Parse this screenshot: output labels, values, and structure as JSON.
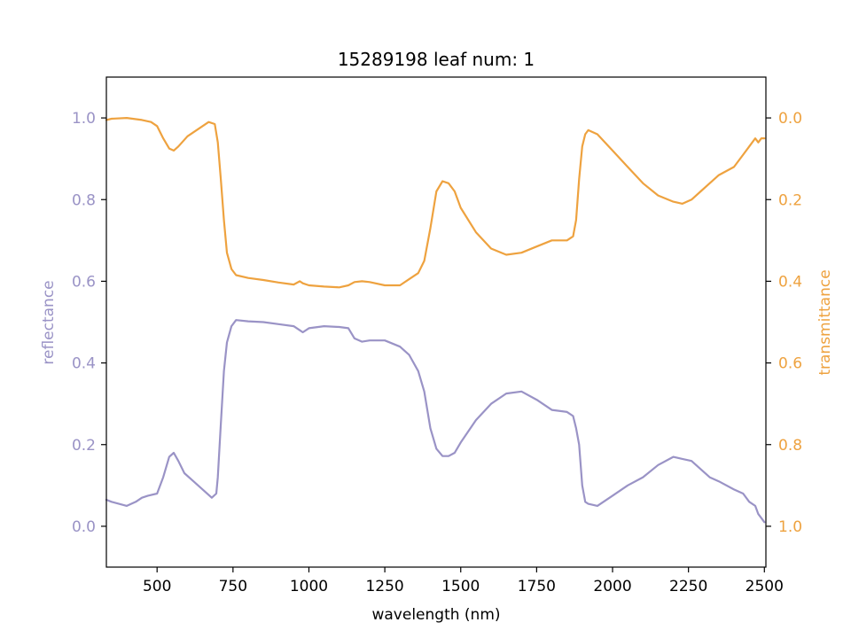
{
  "chart_data": {
    "type": "line",
    "title": "15289198 leaf num: 1",
    "xlabel": "wavelength (nm)",
    "ylabel_left": "reflectance",
    "ylabel_right": "transmittance",
    "xlim": [
      333,
      2505
    ],
    "ylim_left": [
      -0.1,
      1.1
    ],
    "ylim_right": [
      1.1,
      -0.1
    ],
    "right_axis_inverted": true,
    "x_ticks": [
      500,
      750,
      1000,
      1250,
      1500,
      1750,
      2000,
      2250,
      2500
    ],
    "x_tick_labels": [
      "500",
      "750",
      "1000",
      "1250",
      "1500",
      "1750",
      "2000",
      "2250",
      "2500"
    ],
    "y_left_ticks": [
      0.0,
      0.2,
      0.4,
      0.6,
      0.8,
      1.0
    ],
    "y_left_tick_labels": [
      "0.0",
      "0.2",
      "0.4",
      "0.6",
      "0.8",
      "1.0"
    ],
    "y_right_ticks": [
      0.0,
      0.2,
      0.4,
      0.6,
      0.8,
      1.0
    ],
    "y_right_tick_labels": [
      "0.0",
      "0.2",
      "0.4",
      "0.6",
      "0.8",
      "1.0"
    ],
    "grid": false,
    "colors": {
      "reflectance": "#9a93c6",
      "transmittance": "#eea23f",
      "axis": "#000000"
    },
    "series": [
      {
        "axis": "left",
        "color": "#9a93c6",
        "x": [
          333,
          350,
          400,
          430,
          450,
          470,
          500,
          520,
          540,
          555,
          570,
          590,
          620,
          650,
          680,
          695,
          700,
          710,
          720,
          730,
          745,
          760,
          800,
          850,
          900,
          950,
          970,
          980,
          1000,
          1050,
          1100,
          1130,
          1150,
          1175,
          1200,
          1250,
          1300,
          1330,
          1360,
          1380,
          1400,
          1420,
          1440,
          1460,
          1480,
          1500,
          1550,
          1600,
          1650,
          1700,
          1750,
          1800,
          1850,
          1870,
          1880,
          1890,
          1900,
          1910,
          1920,
          1950,
          2000,
          2050,
          2100,
          2150,
          2200,
          2230,
          2260,
          2290,
          2320,
          2350,
          2400,
          2430,
          2450,
          2470,
          2480,
          2490,
          2500
        ],
        "y": [
          0.065,
          0.06,
          0.05,
          0.06,
          0.07,
          0.075,
          0.08,
          0.12,
          0.17,
          0.18,
          0.16,
          0.13,
          0.11,
          0.09,
          0.07,
          0.08,
          0.12,
          0.25,
          0.38,
          0.45,
          0.49,
          0.505,
          0.502,
          0.5,
          0.495,
          0.49,
          0.48,
          0.475,
          0.485,
          0.49,
          0.488,
          0.485,
          0.46,
          0.452,
          0.455,
          0.455,
          0.44,
          0.42,
          0.38,
          0.33,
          0.24,
          0.19,
          0.172,
          0.172,
          0.18,
          0.205,
          0.26,
          0.3,
          0.325,
          0.33,
          0.31,
          0.285,
          0.28,
          0.27,
          0.24,
          0.2,
          0.1,
          0.06,
          0.055,
          0.05,
          0.075,
          0.1,
          0.12,
          0.15,
          0.17,
          0.165,
          0.16,
          0.14,
          0.12,
          0.11,
          0.09,
          0.08,
          0.06,
          0.05,
          0.03,
          0.02,
          0.01
        ]
      },
      {
        "axis": "right",
        "color": "#eea23f",
        "x": [
          333,
          350,
          400,
          450,
          480,
          500,
          520,
          540,
          555,
          570,
          600,
          640,
          670,
          690,
          700,
          710,
          720,
          730,
          745,
          760,
          800,
          850,
          900,
          950,
          970,
          980,
          1000,
          1050,
          1100,
          1130,
          1150,
          1175,
          1200,
          1250,
          1300,
          1330,
          1360,
          1380,
          1400,
          1420,
          1440,
          1460,
          1480,
          1500,
          1550,
          1600,
          1650,
          1700,
          1750,
          1800,
          1850,
          1870,
          1880,
          1890,
          1900,
          1910,
          1920,
          1950,
          2000,
          2050,
          2100,
          2150,
          2200,
          2230,
          2260,
          2290,
          2320,
          2350,
          2400,
          2430,
          2450,
          2470,
          2480,
          2490,
          2500
        ],
        "y": [
          0.005,
          0.002,
          0.0,
          0.005,
          0.01,
          0.02,
          0.05,
          0.075,
          0.08,
          0.07,
          0.045,
          0.025,
          0.01,
          0.015,
          0.06,
          0.15,
          0.25,
          0.33,
          0.37,
          0.385,
          0.392,
          0.397,
          0.403,
          0.408,
          0.4,
          0.405,
          0.41,
          0.413,
          0.415,
          0.41,
          0.402,
          0.4,
          0.402,
          0.41,
          0.41,
          0.395,
          0.38,
          0.35,
          0.27,
          0.18,
          0.155,
          0.16,
          0.18,
          0.22,
          0.28,
          0.32,
          0.335,
          0.33,
          0.315,
          0.3,
          0.3,
          0.29,
          0.25,
          0.15,
          0.07,
          0.04,
          0.03,
          0.04,
          0.08,
          0.12,
          0.16,
          0.19,
          0.205,
          0.21,
          0.2,
          0.18,
          0.16,
          0.14,
          0.12,
          0.09,
          0.07,
          0.05,
          0.06,
          0.05,
          0.05
        ]
      }
    ]
  }
}
